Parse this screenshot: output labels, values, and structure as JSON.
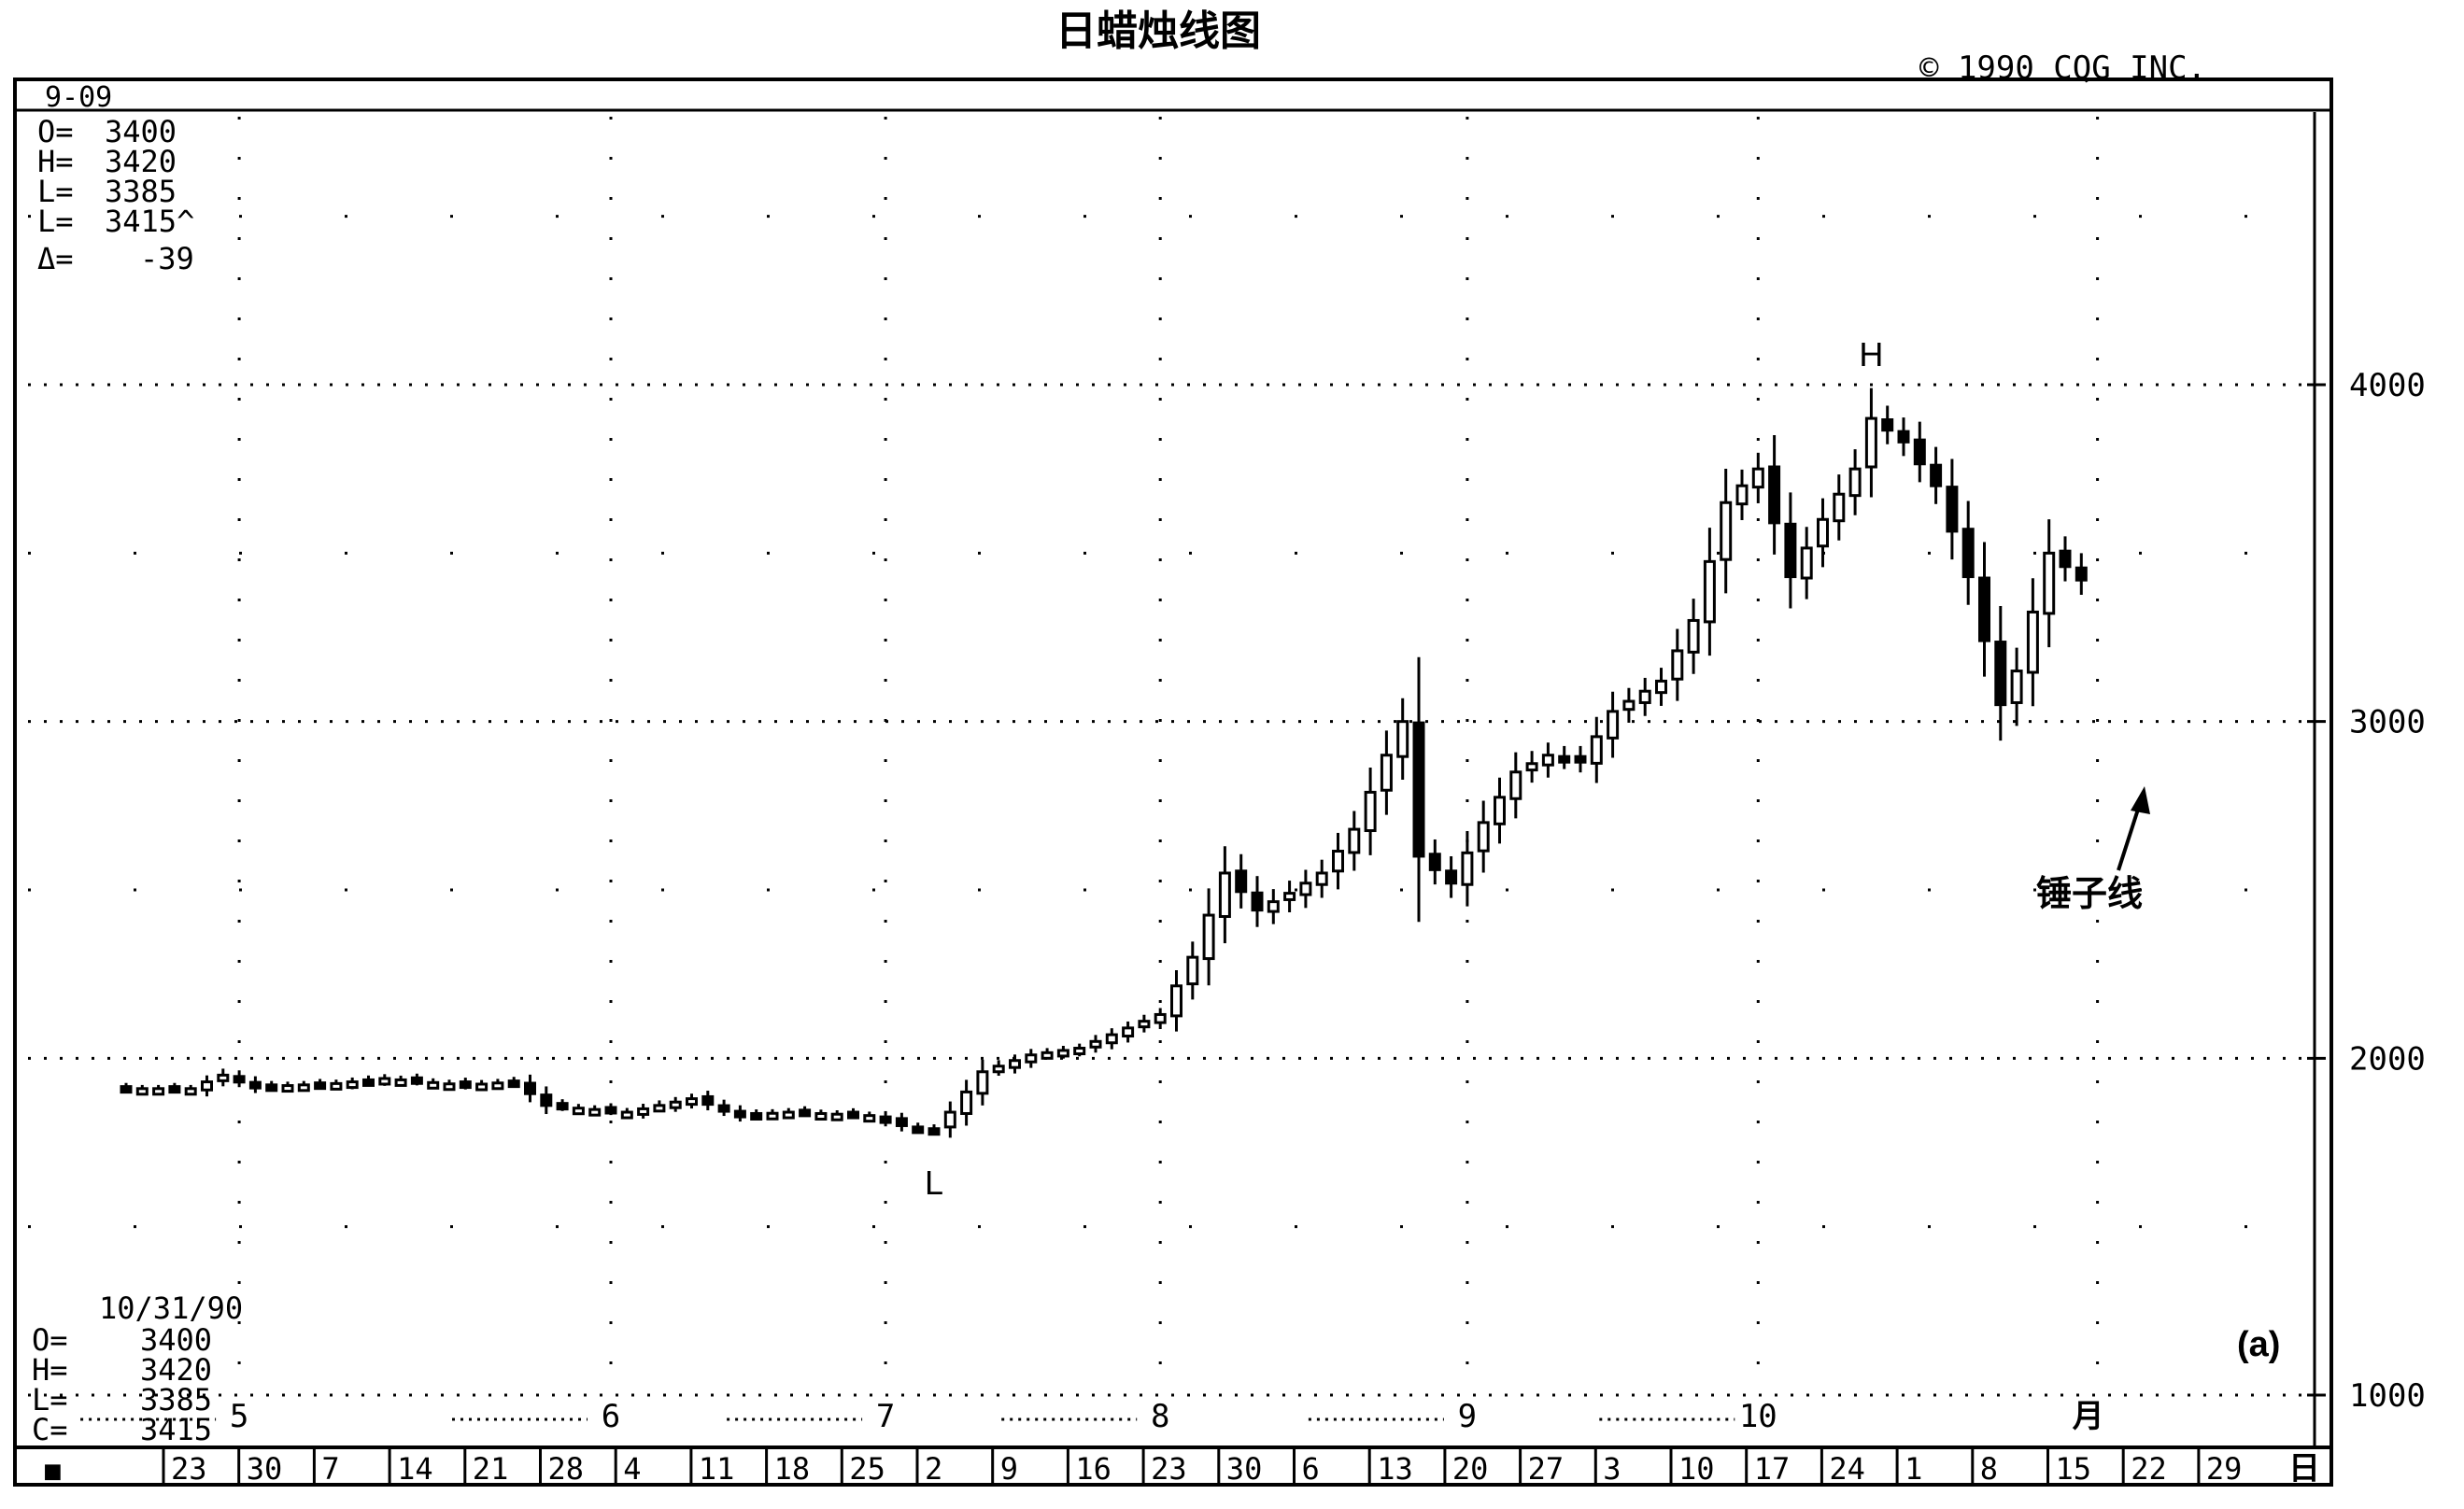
{
  "title": "日蜡烛线图",
  "copyright": "© 1990 CQG INC.",
  "date_top": "9-09",
  "info_top": [
    {
      "label": "O=",
      "value": "3400"
    },
    {
      "label": "H=",
      "value": "3420"
    },
    {
      "label": "L=",
      "value": "3385"
    },
    {
      "label": "L=",
      "value": "3415^"
    },
    {
      "label": "Δ=",
      "value": "-39"
    }
  ],
  "info_bottom": {
    "date": "10/31/90",
    "rows": [
      {
        "label": "O=",
        "value": "3400"
      },
      {
        "label": "H=",
        "value": "3420"
      },
      {
        "label": "L=",
        "value": "3385"
      },
      {
        "label": "C=",
        "value": "3415"
      }
    ]
  },
  "panel_label": "(a)",
  "month_axis_label": "月",
  "day_axis_label": "日",
  "corner_marker": "■",
  "annotations": {
    "high": "H",
    "low": "L",
    "hammer": "锤子线"
  },
  "colors": {
    "ink": "#000000",
    "paper": "#ffffff"
  },
  "chart_data": {
    "type": "candlestick",
    "title": "日蜡烛线图",
    "y_ticks": [
      1000,
      2000,
      3000,
      4000
    ],
    "y_tick_labels": [
      "1000",
      "2000",
      "3000",
      "4000"
    ],
    "ylim": [
      1000,
      4200
    ],
    "grid": true,
    "months": [
      {
        "label": "5",
        "day_index": 7
      },
      {
        "label": "6",
        "day_index": 30
      },
      {
        "label": "7",
        "day_index": 47
      },
      {
        "label": "8",
        "day_index": 64
      },
      {
        "label": "9",
        "day_index": 83
      },
      {
        "label": "10",
        "day_index": 101
      },
      {
        "label": "月",
        "day_index": 122
      }
    ],
    "week_labels": [
      "23",
      "30",
      "7",
      "14",
      "21",
      "28",
      "4",
      "11",
      "18",
      "25",
      "2",
      "9",
      "16",
      "23",
      "30",
      "6",
      "13",
      "20",
      "27",
      "3",
      "10",
      "17",
      "24",
      "1",
      "8",
      "15",
      "22",
      "29"
    ],
    "anchors": [
      {
        "i": 0,
        "v": 1910
      },
      {
        "i": 4,
        "v": 1910
      },
      {
        "i": 6,
        "v": 1950
      },
      {
        "i": 8,
        "v": 1915
      },
      {
        "i": 13,
        "v": 1925
      },
      {
        "i": 16,
        "v": 1940
      },
      {
        "i": 21,
        "v": 1920
      },
      {
        "i": 24,
        "v": 1930
      },
      {
        "i": 26,
        "v": 1860
      },
      {
        "i": 31,
        "v": 1840
      },
      {
        "i": 35,
        "v": 1880
      },
      {
        "i": 38,
        "v": 1830
      },
      {
        "i": 41,
        "v": 1840
      },
      {
        "i": 46,
        "v": 1830
      },
      {
        "i": 48,
        "v": 1800
      },
      {
        "i": 50,
        "v": 1790
      },
      {
        "i": 51,
        "v": 1840
      },
      {
        "i": 53,
        "v": 1960
      },
      {
        "i": 56,
        "v": 2010
      },
      {
        "i": 59,
        "v": 2030
      },
      {
        "i": 62,
        "v": 2090
      },
      {
        "i": 64,
        "v": 2130
      },
      {
        "i": 66,
        "v": 2300
      },
      {
        "i": 68,
        "v": 2550
      },
      {
        "i": 70,
        "v": 2440
      },
      {
        "i": 72,
        "v": 2490
      },
      {
        "i": 74,
        "v": 2550
      },
      {
        "i": 76,
        "v": 2680
      },
      {
        "i": 78,
        "v": 2900
      },
      {
        "i": 79,
        "v": 3000
      },
      {
        "i": 80,
        "v": 2600
      },
      {
        "i": 82,
        "v": 2520
      },
      {
        "i": 84,
        "v": 2700
      },
      {
        "i": 86,
        "v": 2850
      },
      {
        "i": 88,
        "v": 2900
      },
      {
        "i": 90,
        "v": 2880
      },
      {
        "i": 92,
        "v": 3030
      },
      {
        "i": 95,
        "v": 3120
      },
      {
        "i": 97,
        "v": 3300
      },
      {
        "i": 99,
        "v": 3650
      },
      {
        "i": 101,
        "v": 3750
      },
      {
        "i": 103,
        "v": 3430
      },
      {
        "i": 105,
        "v": 3600
      },
      {
        "i": 107,
        "v": 3750
      },
      {
        "i": 108,
        "v": 3900
      },
      {
        "i": 110,
        "v": 3830
      },
      {
        "i": 112,
        "v": 3700
      },
      {
        "i": 114,
        "v": 3430
      },
      {
        "i": 116,
        "v": 3050
      },
      {
        "i": 117,
        "v": 3150
      },
      {
        "i": 119,
        "v": 3500
      },
      {
        "i": 121,
        "v": 3420
      }
    ],
    "last_bar": {
      "date": "10/31/90",
      "open": 3400,
      "high": 3420,
      "low": 3385,
      "close": 3415
    },
    "high_point": {
      "day_index": 108,
      "value": 4000,
      "label": "H"
    },
    "low_point": {
      "day_index": 50,
      "value": 1790,
      "label": "L"
    },
    "hammer_point": {
      "day_index": 116,
      "label": "锤子线"
    }
  }
}
